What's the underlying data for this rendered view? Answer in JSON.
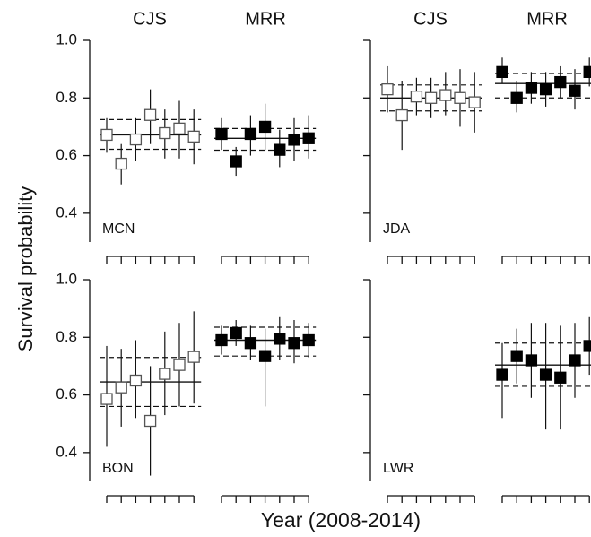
{
  "y_label": "Survival probability",
  "x_label": "Year (2008-2014)",
  "column_headers": [
    "CJS",
    "MRR",
    "CJS",
    "MRR"
  ],
  "chart_data": [
    {
      "type": "scatter",
      "panel_label": "MCN",
      "ylim": [
        0.3,
        1.0
      ],
      "show_tick_labels": true,
      "yticks": [
        0.4,
        0.6,
        0.8,
        {
          "value": 1.0,
          "label": "1.0"
        }
      ],
      "series": [
        {
          "color": "#ffffff",
          "values": [
            0.672,
            0.572,
            0.656,
            0.741,
            0.678,
            0.694,
            0.666
          ],
          "lower": [
            0.61,
            0.5,
            0.58,
            0.64,
            0.59,
            0.59,
            0.57
          ],
          "upper": [
            0.73,
            0.64,
            0.73,
            0.83,
            0.76,
            0.79,
            0.76
          ],
          "mean": 0.672,
          "ci": [
            0.622,
            0.725
          ]
        },
        {
          "color": "#000000",
          "values": [
            0.675,
            0.58,
            0.675,
            0.7,
            0.62,
            0.655,
            0.66
          ],
          "lower": [
            0.62,
            0.53,
            0.6,
            0.62,
            0.56,
            0.58,
            0.59
          ],
          "upper": [
            0.73,
            0.63,
            0.74,
            0.78,
            0.69,
            0.73,
            0.74
          ],
          "mean": 0.66,
          "ci": [
            0.619,
            0.694
          ]
        }
      ]
    },
    {
      "type": "scatter",
      "panel_label": "JDA",
      "ylim": [
        0.3,
        1.0
      ],
      "show_tick_labels": false,
      "yticks": [
        0.4,
        0.6,
        0.8,
        1.0
      ],
      "series": [
        {
          "color": "#ffffff",
          "values": [
            0.83,
            0.74,
            0.805,
            0.8,
            0.81,
            0.8,
            0.785
          ],
          "lower": [
            0.75,
            0.62,
            0.74,
            0.73,
            0.74,
            0.7,
            0.68
          ],
          "upper": [
            0.91,
            0.86,
            0.87,
            0.87,
            0.89,
            0.9,
            0.89
          ],
          "mean": 0.8,
          "ci": [
            0.755,
            0.845
          ]
        },
        {
          "color": "#000000",
          "values": [
            0.89,
            0.8,
            0.835,
            0.83,
            0.855,
            0.825,
            0.89
          ],
          "lower": [
            0.85,
            0.75,
            0.78,
            0.77,
            0.8,
            0.76,
            0.84
          ],
          "upper": [
            0.94,
            0.86,
            0.89,
            0.89,
            0.91,
            0.9,
            0.94
          ],
          "mean": 0.85,
          "ci": [
            0.8,
            0.885
          ]
        }
      ]
    },
    {
      "type": "scatter",
      "panel_label": "BON",
      "ylim": [
        0.3,
        1.0
      ],
      "show_tick_labels": true,
      "yticks": [
        0.4,
        0.6,
        0.8,
        {
          "value": 1.0,
          "label": "1.0"
        }
      ],
      "series": [
        {
          "color": "#ffffff",
          "values": [
            0.586,
            0.626,
            0.65,
            0.51,
            0.673,
            0.704,
            0.732
          ],
          "lower": [
            0.42,
            0.49,
            0.52,
            0.32,
            0.53,
            0.56,
            0.57
          ],
          "upper": [
            0.77,
            0.76,
            0.79,
            0.7,
            0.82,
            0.85,
            0.89
          ],
          "mean": 0.645,
          "ci": [
            0.56,
            0.73
          ]
        },
        {
          "color": "#000000",
          "values": [
            0.79,
            0.815,
            0.78,
            0.735,
            0.795,
            0.78,
            0.79
          ],
          "lower": [
            0.74,
            0.77,
            0.72,
            0.56,
            0.72,
            0.71,
            0.73
          ],
          "upper": [
            0.84,
            0.86,
            0.84,
            0.83,
            0.87,
            0.86,
            0.85
          ],
          "mean": 0.79,
          "ci": [
            0.735,
            0.835
          ]
        }
      ]
    },
    {
      "type": "scatter",
      "panel_label": "LWR",
      "ylim": [
        0.3,
        1.0
      ],
      "show_tick_labels": false,
      "yticks": [
        0.4,
        0.6,
        0.8,
        1.0
      ],
      "series": [
        {
          "color": "#ffffff",
          "values": [
            null,
            null,
            null,
            null,
            null,
            null,
            null
          ],
          "lower": [
            null,
            null,
            null,
            null,
            null,
            null,
            null
          ],
          "upper": [
            null,
            null,
            null,
            null,
            null,
            null,
            null
          ],
          "mean": null,
          "ci": [
            null,
            null
          ]
        },
        {
          "color": "#000000",
          "values": [
            0.67,
            0.735,
            0.72,
            0.67,
            0.66,
            0.72,
            0.77
          ],
          "lower": [
            0.52,
            0.64,
            0.59,
            0.48,
            0.48,
            0.59,
            0.67
          ],
          "upper": [
            0.78,
            0.83,
            0.85,
            0.85,
            0.84,
            0.85,
            0.87
          ],
          "mean": 0.704,
          "ci": [
            0.63,
            0.78
          ]
        }
      ]
    }
  ]
}
